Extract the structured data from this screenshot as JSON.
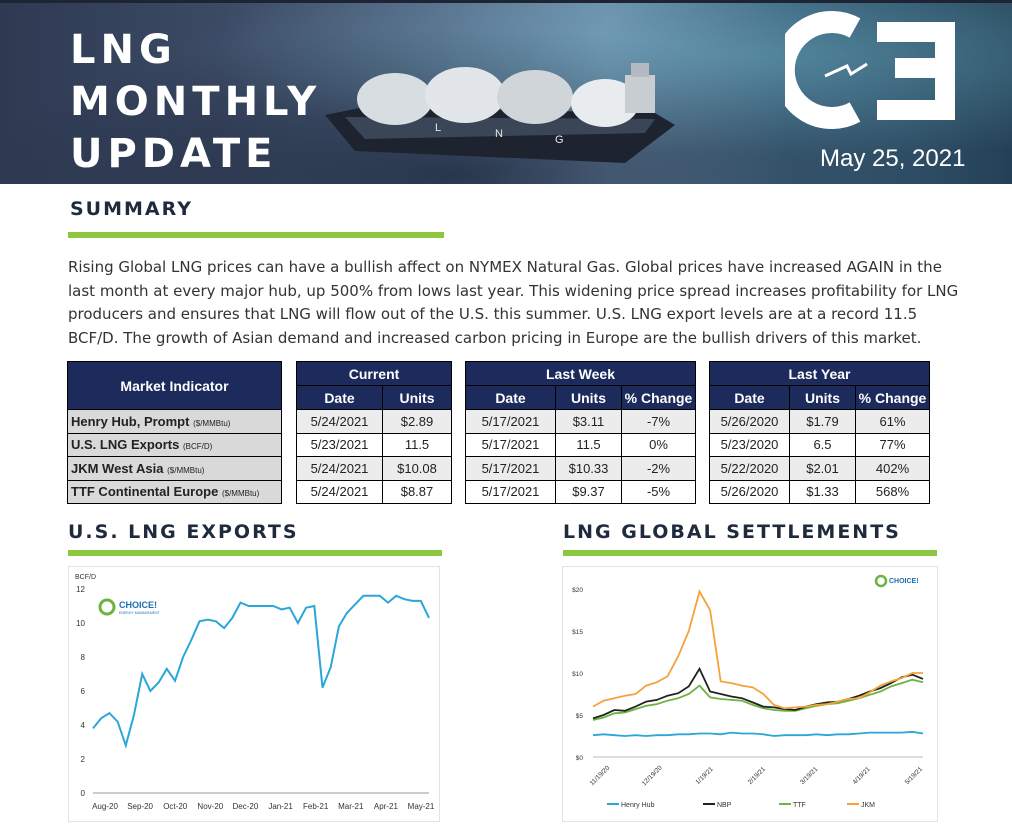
{
  "header": {
    "title_lines": [
      "LNG",
      "MONTHLY",
      "UPDATE"
    ],
    "date": "May 25, 2021",
    "ship_label": [
      "L",
      "N",
      "G"
    ]
  },
  "summary": {
    "heading": "SUMMARY",
    "text": "Rising Global LNG prices can have a bullish affect on NYMEX Natural Gas. Global prices have increased AGAIN in the last month at every major hub, up 500% from lows last year. This widening price spread increases profitability for LNG producers and ensures that LNG will flow out of the U.S. this summer. U.S. LNG export levels are at a record 11.5 BCF/D. The growth of Asian demand and increased carbon pricing in Europe are the bullish drivers of this market."
  },
  "market_table": {
    "indicator_header": "Market Indicator",
    "indicators": [
      {
        "name": "Henry Hub, Prompt",
        "unit": "($/MMBtu)"
      },
      {
        "name": "U.S. LNG Exports",
        "unit": "(BCF/D)"
      },
      {
        "name": "JKM West Asia",
        "unit": "($/MMBtu)"
      },
      {
        "name": "TTF Continental Europe",
        "unit": "($/MMBtu)"
      }
    ],
    "current": {
      "header": "Current",
      "columns": [
        "Date",
        "Units"
      ],
      "rows": [
        [
          "5/24/2021",
          "$2.89"
        ],
        [
          "5/23/2021",
          "11.5"
        ],
        [
          "5/24/2021",
          "$10.08"
        ],
        [
          "5/24/2021",
          "$8.87"
        ]
      ]
    },
    "last_week": {
      "header": "Last Week",
      "columns": [
        "Date",
        "Units",
        "% Change"
      ],
      "rows": [
        [
          "5/17/2021",
          "$3.11",
          "-7%"
        ],
        [
          "5/17/2021",
          "11.5",
          "0%"
        ],
        [
          "5/17/2021",
          "$10.33",
          "-2%"
        ],
        [
          "5/17/2021",
          "$9.37",
          "-5%"
        ]
      ]
    },
    "last_year": {
      "header": "Last Year",
      "columns": [
        "Date",
        "Units",
        "% Change"
      ],
      "rows": [
        [
          "5/26/2020",
          "$1.79",
          "61%"
        ],
        [
          "5/23/2020",
          "6.5",
          "77%"
        ],
        [
          "5/22/2020",
          "$2.01",
          "402%"
        ],
        [
          "5/26/2020",
          "$1.33",
          "568%"
        ]
      ]
    }
  },
  "exports_section": {
    "heading": "U.S. LNG EXPORTS"
  },
  "settlements_section": {
    "heading": "LNG GLOBAL SETTLEMENTS"
  },
  "colors": {
    "navy": "#1c2b5c",
    "green": "#8dc63f",
    "line_blue": "#2aa6d8",
    "jkm": "#f5a23b",
    "ttf": "#6cb33f",
    "nbp": "#222222",
    "hh": "#2aa6d8"
  },
  "chart_data": [
    {
      "type": "line",
      "ylabel": "BCF/D",
      "ylim": [
        0,
        12
      ],
      "yticks": [
        0,
        2,
        4,
        6,
        8,
        10,
        12
      ],
      "xticks": [
        "Aug-20",
        "Sep-20",
        "Oct-20",
        "Nov-20",
        "Dec-20",
        "Jan-21",
        "Feb-21",
        "Mar-21",
        "Apr-21",
        "May-21"
      ],
      "logo_text": "CHOICE!",
      "logo_sub": "ENERGY MANAGEMENT",
      "series": [
        {
          "values": [
            3.8,
            4.4,
            4.7,
            4.2,
            2.8,
            4.6,
            7.0,
            6.0,
            6.5,
            7.3,
            6.6,
            8.0,
            9.0,
            10.1,
            10.2,
            10.1,
            9.7,
            10.3,
            11.2,
            11.0,
            11.0,
            11.0,
            11.0,
            10.8,
            10.9,
            10.0,
            10.9,
            11.0,
            6.2,
            7.4,
            9.8,
            10.6,
            11.1,
            11.6,
            11.6,
            11.6,
            11.2,
            11.6,
            11.4,
            11.3,
            11.3,
            10.3
          ]
        }
      ]
    },
    {
      "type": "line",
      "ylim": [
        0,
        20
      ],
      "yticks": [
        "$0",
        "$5",
        "$10",
        "$15",
        "$20"
      ],
      "xticks": [
        "11/19/20",
        "12/19/20",
        "1/19/21",
        "2/19/21",
        "3/19/21",
        "4/19/21",
        "5/19/21"
      ],
      "logo_text": "CHOICE!",
      "legend": "bottom",
      "series": [
        {
          "name": "Henry Hub",
          "values": [
            2.6,
            2.7,
            2.6,
            2.5,
            2.6,
            2.5,
            2.6,
            2.6,
            2.7,
            2.7,
            2.8,
            2.8,
            2.7,
            2.9,
            2.8,
            2.8,
            2.7,
            2.5,
            2.6,
            2.6,
            2.6,
            2.7,
            2.6,
            2.7,
            2.7,
            2.8,
            2.9,
            2.9,
            2.9,
            2.9,
            3.0,
            2.8
          ]
        },
        {
          "name": "NBP",
          "values": [
            4.6,
            5.0,
            5.6,
            5.5,
            6.0,
            6.6,
            6.8,
            7.3,
            7.6,
            8.4,
            10.5,
            7.8,
            7.5,
            7.2,
            7.0,
            6.5,
            6.0,
            5.9,
            5.7,
            5.6,
            6.0,
            6.3,
            6.5,
            6.6,
            6.9,
            7.3,
            7.8,
            8.2,
            8.8,
            9.5,
            9.8,
            9.3
          ]
        },
        {
          "name": "TTF",
          "values": [
            4.4,
            4.7,
            5.2,
            5.3,
            5.7,
            6.1,
            6.3,
            6.7,
            7.0,
            7.5,
            8.5,
            7.1,
            6.9,
            6.8,
            6.7,
            6.2,
            5.8,
            5.6,
            5.5,
            5.5,
            5.8,
            6.1,
            6.3,
            6.4,
            6.7,
            7.0,
            7.4,
            7.8,
            8.4,
            8.8,
            9.2,
            8.9
          ]
        },
        {
          "name": "JKM",
          "values": [
            6.0,
            6.7,
            7.0,
            7.3,
            7.5,
            8.5,
            8.9,
            9.6,
            12.0,
            15.0,
            19.7,
            17.5,
            9.0,
            8.8,
            8.5,
            8.3,
            7.5,
            6.2,
            5.8,
            5.9,
            6.0,
            6.2,
            6.3,
            6.6,
            6.9,
            7.0,
            7.7,
            8.5,
            9.0,
            9.4,
            10.0,
            10.0
          ]
        }
      ]
    }
  ]
}
